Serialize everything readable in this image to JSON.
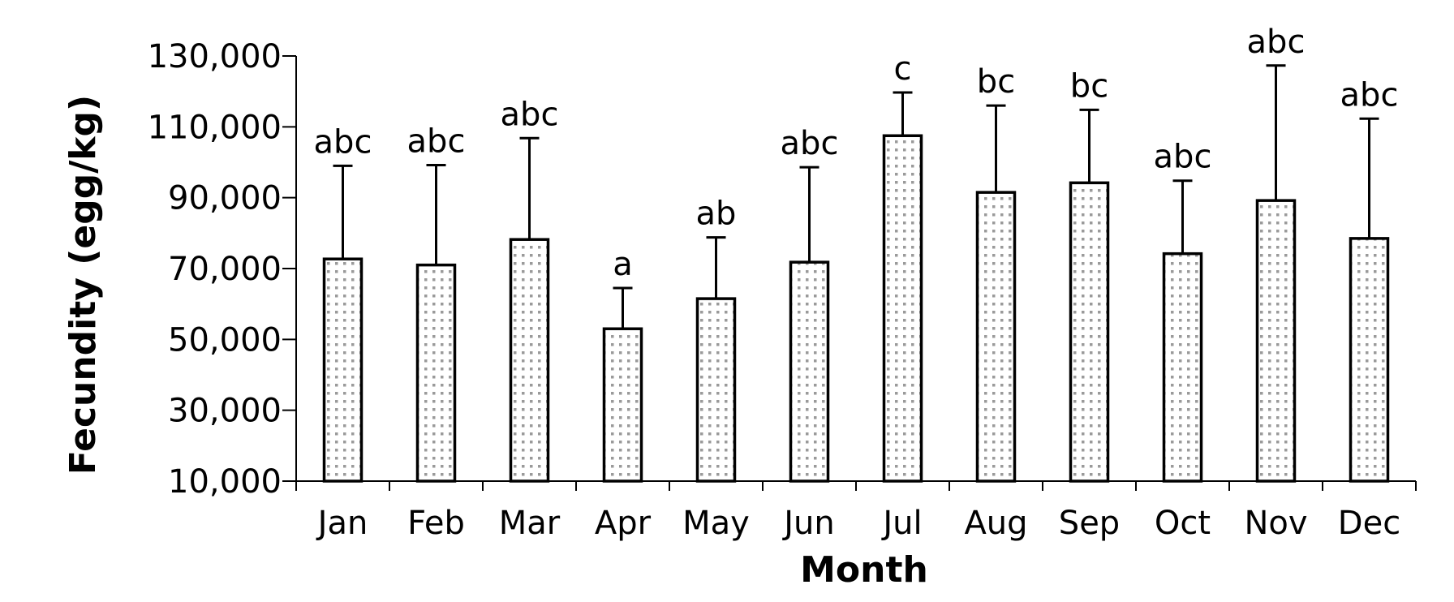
{
  "chart_data": {
    "type": "bar",
    "xlabel": "Month",
    "ylabel": "Fecundity (egg/kg)",
    "ylim": [
      10000,
      130000
    ],
    "yticks": [
      10000,
      30000,
      50000,
      70000,
      90000,
      110000,
      130000
    ],
    "ytick_labels": [
      "10,000",
      "30,000",
      "50,000",
      "70,000",
      "90,000",
      "110,000",
      "130,000"
    ],
    "categories": [
      "Jan",
      "Feb",
      "Mar",
      "Apr",
      "May",
      "Jun",
      "Jul",
      "Aug",
      "Sep",
      "Oct",
      "Nov",
      "Dec"
    ],
    "values": [
      72700,
      71000,
      78200,
      53000,
      61500,
      71800,
      107500,
      91500,
      94200,
      74200,
      89200,
      78500
    ],
    "error_upper": [
      99000,
      99200,
      106800,
      64500,
      78800,
      98600,
      119700,
      116000,
      114800,
      94800,
      127300,
      112300
    ],
    "significance": [
      "abc",
      "abc",
      "abc",
      "a",
      "ab",
      "abc",
      "c",
      "bc",
      "bc",
      "abc",
      "abc",
      "abc"
    ],
    "bar_fill": "dotted light gray pattern",
    "grid": false,
    "legend": "none"
  }
}
